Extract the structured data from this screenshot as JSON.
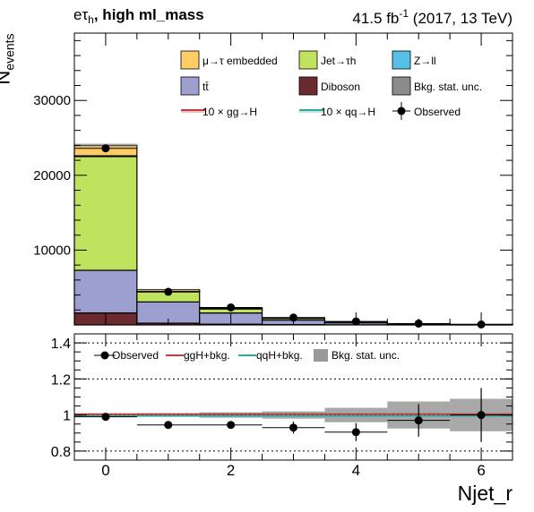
{
  "header": {
    "channel": "eτ",
    "channel_sub": "h",
    "category": ", high ml_mass",
    "lumi": "41.5 fb",
    "lumi_sup": "-1",
    "lumi_rest": " (2017, 13 TeV)"
  },
  "chart_data": [
    {
      "type": "bar",
      "stacked": true,
      "ylabel_main": "N",
      "ylabel_sub": "events",
      "x_edges": [
        -0.5,
        0.5,
        1.5,
        2.5,
        3.5,
        4.5,
        5.5,
        6.5
      ],
      "bin_centers": [
        0,
        1,
        2,
        3,
        4,
        5,
        6
      ],
      "xlim": [
        -0.5,
        6.5
      ],
      "ylim": [
        0,
        39000
      ],
      "yticks": [
        10000,
        20000,
        30000
      ],
      "ytick_labels": [
        "10000",
        "20000",
        "30000"
      ],
      "series": [
        {
          "name": "Diboson",
          "color": "#6b2a2d",
          "values": [
            1600,
            230,
            100,
            45,
            20,
            8,
            3
          ]
        },
        {
          "name": "tt̄",
          "color": "#9d9fcf",
          "values": [
            5700,
            2840,
            1500,
            610,
            270,
            110,
            40
          ]
        },
        {
          "name": "Jet→τh",
          "color": "#c0e35f",
          "values": [
            15200,
            1350,
            540,
            230,
            95,
            38,
            15
          ]
        },
        {
          "name": "Z→ll",
          "color": "#58c0e6",
          "values": [
            100,
            50,
            30,
            15,
            10,
            6,
            3
          ]
        },
        {
          "name": "μ→τ embedded",
          "color": "#ffcc66",
          "values": [
            1400,
            250,
            110,
            50,
            22,
            10,
            5
          ]
        }
      ],
      "observed": {
        "name": "Observed",
        "values": [
          23600,
          4420,
          2340,
          980,
          470,
          185,
          60
        ]
      },
      "signals": [
        {
          "name": "10 × gg→H",
          "color": "#c23b3b"
        },
        {
          "name": "10 × qq→H",
          "color": "#2fa8a0"
        }
      ],
      "uncertainty_label": "Bkg. stat. unc.",
      "legend": {
        "position": "top",
        "entries": [
          {
            "label": "μ→τ embedded",
            "kind": "box",
            "color": "#ffcc66"
          },
          {
            "label": "Jet→τh",
            "kind": "box",
            "color": "#c0e35f"
          },
          {
            "label": "Z→ll",
            "kind": "box",
            "color": "#58c0e6"
          },
          {
            "label": "tt̄",
            "kind": "box",
            "color": "#9d9fcf"
          },
          {
            "label": "Diboson",
            "kind": "box",
            "color": "#6b2a2d"
          },
          {
            "label": "Bkg. stat. unc.",
            "kind": "box",
            "color": "#8c8c8c"
          },
          {
            "label": "10 × gg→H",
            "kind": "line",
            "color": "#c23b3b"
          },
          {
            "label": "10 × qq→H",
            "kind": "line",
            "color": "#2fa8a0"
          },
          {
            "label": "Observed",
            "kind": "marker",
            "color": "#000000"
          }
        ]
      }
    },
    {
      "type": "scatter",
      "panel": "ratio",
      "xlabel": "Njet_r",
      "xlim": [
        -0.5,
        6.5
      ],
      "ylim": [
        0.75,
        1.45
      ],
      "yticks": [
        0.8,
        1,
        1.2,
        1.4
      ],
      "ytick_labels": [
        "0.8",
        "1",
        "1.2",
        "1.4"
      ],
      "xticks": [
        0,
        2,
        4,
        6
      ],
      "xtick_labels": [
        "0",
        "2",
        "4",
        "6"
      ],
      "ratio_points": [
        0.99,
        0.945,
        0.945,
        0.93,
        0.905,
        0.97,
        1.0
      ],
      "ratio_errors": [
        0.007,
        0.015,
        0.02,
        0.033,
        0.05,
        0.09,
        0.15
      ],
      "unc_band": [
        0.005,
        0.01,
        0.015,
        0.02,
        0.04,
        0.075,
        0.09
      ],
      "signal_ratio": [
        1.0,
        1.0,
        1.0,
        1.0,
        1.0,
        1.0,
        1.0
      ],
      "legend": {
        "position": "top",
        "entries": [
          {
            "label": "Observed",
            "kind": "marker",
            "color": "#000000"
          },
          {
            "label": "ggH+bkg.",
            "kind": "line",
            "color": "#c23b3b"
          },
          {
            "label": "qqH+bkg.",
            "kind": "line",
            "color": "#2fa8a0"
          },
          {
            "label": "Bkg. stat. unc.",
            "kind": "box",
            "color": "#8c8c8c"
          }
        ]
      }
    }
  ]
}
